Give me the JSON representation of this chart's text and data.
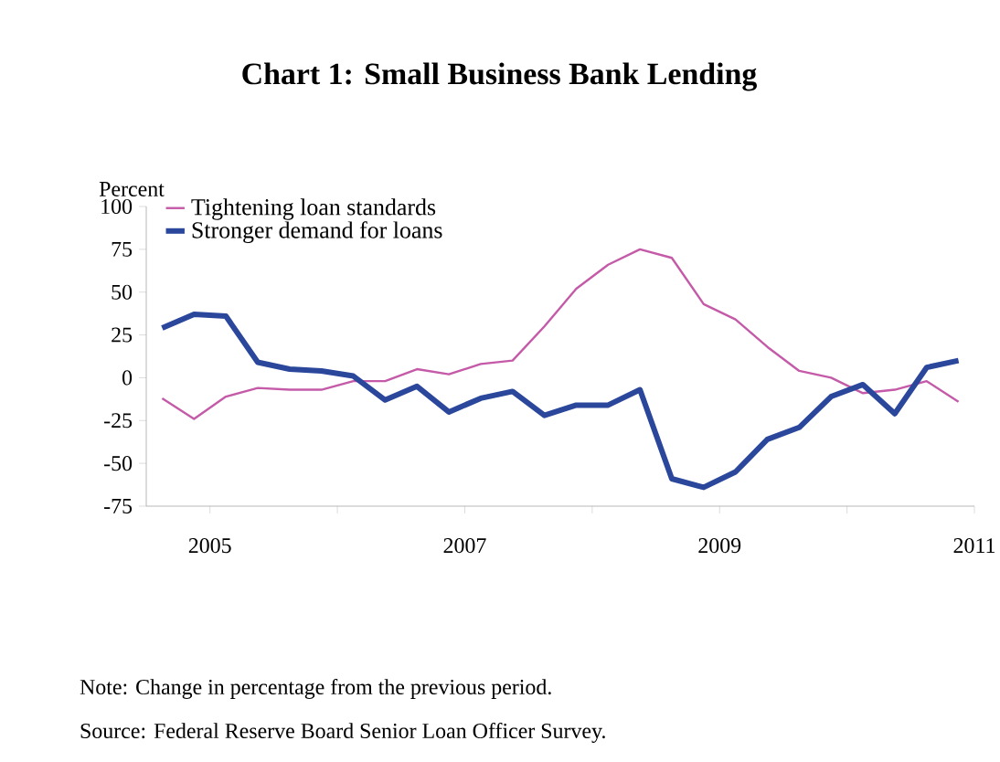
{
  "chart_data": {
    "type": "line",
    "title": "Chart 1: Small Business Bank Lending",
    "ylabel": "Percent",
    "annotations": [
      "Note: Change in percentage from the previous period.",
      "Source: Federal Reserve Board Senior Loan Officer Survey."
    ],
    "x": [
      2004.625,
      2004.875,
      2005.125,
      2005.375,
      2005.625,
      2005.875,
      2006.125,
      2006.375,
      2006.625,
      2006.875,
      2007.125,
      2007.375,
      2007.625,
      2007.875,
      2008.125,
      2008.375,
      2008.625,
      2008.875,
      2009.125,
      2009.375,
      2009.625,
      2009.875,
      2010.125,
      2010.375,
      2010.625,
      2010.875
    ],
    "series": [
      {
        "name": "Tightening loan standards",
        "color": "#c45aa8",
        "values": [
          -12,
          -24,
          -11,
          -6,
          -7,
          -7,
          -2,
          -2,
          5,
          2,
          8,
          10,
          30,
          52,
          66,
          75,
          70,
          43,
          34,
          18,
          4,
          0,
          -9,
          -7,
          -2,
          -14
        ]
      },
      {
        "name": "Stronger demand for loans",
        "color": "#2b479c",
        "values": [
          29,
          37,
          36,
          9,
          5,
          4,
          1,
          -13,
          -5,
          -20,
          -12,
          -8,
          -22,
          -16,
          -16,
          -7,
          -59,
          -64,
          -55,
          -36,
          -29,
          -11,
          -4,
          -21,
          6,
          10
        ]
      }
    ],
    "xlim": [
      2004.5,
      2011
    ],
    "xticks": [
      2005,
      {
        "value": 2006,
        "label": null
      },
      2007,
      {
        "value": 2008,
        "label": null
      },
      2009,
      {
        "value": 2010,
        "label": null
      },
      2011
    ],
    "ylim": [
      -75,
      100
    ],
    "yticks": [
      -75,
      -50,
      -25,
      0,
      25,
      50,
      75,
      100
    ],
    "legend": "top left",
    "grid": false,
    "marker": "none",
    "line_style": "solid"
  }
}
